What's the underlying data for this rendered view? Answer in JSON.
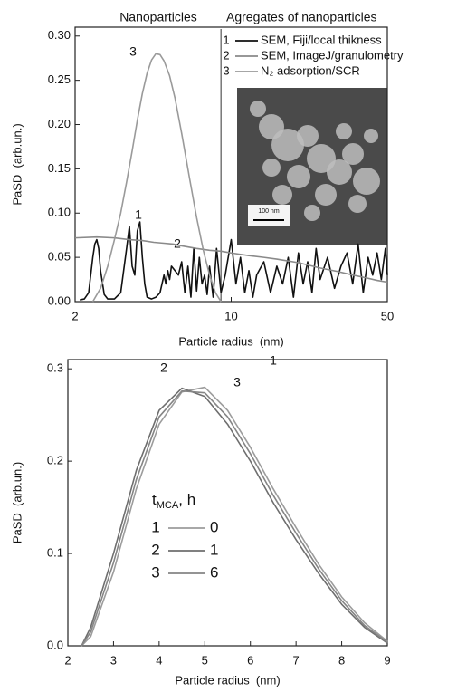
{
  "chart_data": [
    {
      "type": "line",
      "xscale": "log",
      "annotations": [
        "Nanoparticles",
        "Agregates of nanoparticles"
      ],
      "x_label": "Particle radius  (nm)",
      "y_label": "PaSD  (arb.un.)",
      "xlim": [
        2,
        50
      ],
      "xticks": [
        2,
        10,
        50
      ],
      "ylim": [
        0,
        0.31
      ],
      "yticks": [
        {
          "value": 0,
          "label": "0.00"
        },
        0.05,
        {
          "value": 0.1,
          "label": "0.10"
        },
        0.15,
        {
          "value": 0.2,
          "label": "0.20"
        },
        0.25,
        {
          "value": 0.3,
          "label": "0.30"
        }
      ],
      "vline": 9,
      "inset_scale_label": "100 nm",
      "series": [
        {
          "id": "1",
          "name": "SEM, Fiji/local thikness",
          "color": "#111111",
          "x": [
            2.1,
            2.2,
            2.3,
            2.4,
            2.45,
            2.5,
            2.55,
            2.6,
            2.7,
            2.8,
            3.0,
            3.2,
            3.4,
            3.5,
            3.6,
            3.7,
            3.8,
            3.9,
            4.0,
            4.1,
            4.2,
            4.4,
            4.6,
            4.8,
            5.0,
            5.1,
            5.2,
            5.3,
            5.4,
            5.6,
            5.8,
            6.0,
            6.2,
            6.4,
            6.6,
            6.8,
            7.0,
            7.2,
            7.4,
            7.6,
            7.8,
            8.0,
            8.3,
            8.6,
            9.0,
            9.4,
            10.0,
            10.5,
            11,
            11.5,
            12,
            12.5,
            13,
            14,
            15,
            16,
            17,
            18,
            19,
            20,
            21,
            22,
            23,
            24,
            25,
            27,
            29,
            31,
            33,
            35,
            37,
            39,
            41,
            43,
            45,
            47,
            49,
            50
          ],
          "values": [
            0.002,
            0.003,
            0.01,
            0.05,
            0.065,
            0.07,
            0.06,
            0.035,
            0.008,
            0.003,
            0.003,
            0.01,
            0.06,
            0.085,
            0.04,
            0.03,
            0.08,
            0.09,
            0.05,
            0.02,
            0.005,
            0.003,
            0.005,
            0.01,
            0.03,
            0.02,
            0.035,
            0.025,
            0.04,
            0.035,
            0.03,
            0.045,
            0.01,
            0.04,
            0.005,
            0.06,
            0.012,
            0.05,
            0.02,
            0.03,
            0.008,
            0.04,
            0.005,
            0.06,
            0.01,
            0.03,
            0.07,
            0.02,
            0.05,
            0.01,
            0.035,
            0.005,
            0.03,
            0.045,
            0.01,
            0.04,
            0.02,
            0.05,
            0.005,
            0.055,
            0.02,
            0.045,
            0.01,
            0.06,
            0.025,
            0.05,
            0.015,
            0.04,
            0.055,
            0.02,
            0.065,
            0.01,
            0.05,
            0.03,
            0.055,
            0.025,
            0.06,
            0.03
          ]
        },
        {
          "id": "2",
          "name": "SEM, ImageJ/granulometry",
          "color": "#8a8a8a",
          "x": [
            2,
            2.5,
            3,
            3.5,
            4,
            4.5,
            5,
            5.5,
            6,
            7,
            8,
            9,
            10,
            12,
            14,
            16,
            20,
            25,
            30,
            35,
            40,
            45,
            50
          ],
          "values": [
            0.072,
            0.073,
            0.072,
            0.07,
            0.069,
            0.067,
            0.066,
            0.065,
            0.063,
            0.06,
            0.058,
            0.057,
            0.055,
            0.052,
            0.05,
            0.048,
            0.044,
            0.038,
            0.034,
            0.03,
            0.027,
            0.024,
            0.022
          ]
        },
        {
          "id": "3",
          "name": "N₂ adsorption/SCR",
          "color": "#9a9a9a",
          "x": [
            2.4,
            2.6,
            2.8,
            3.0,
            3.2,
            3.4,
            3.6,
            3.8,
            4.0,
            4.2,
            4.4,
            4.6,
            4.8,
            5.0,
            5.3,
            5.6,
            6.0,
            6.5,
            7.0,
            7.5,
            8.0,
            8.5,
            9.0
          ],
          "values": [
            0,
            0.015,
            0.04,
            0.07,
            0.1,
            0.135,
            0.17,
            0.205,
            0.235,
            0.258,
            0.273,
            0.28,
            0.279,
            0.272,
            0.255,
            0.23,
            0.19,
            0.14,
            0.095,
            0.058,
            0.03,
            0.01,
            0
          ]
        }
      ]
    },
    {
      "type": "line",
      "x_label": "Particle radius  (nm)",
      "y_label": "PaSD  (arb.un.)",
      "legend_title": [
        "t",
        "MCA",
        ", h"
      ],
      "xlim": [
        2,
        9
      ],
      "xticks": [
        2,
        3,
        4,
        5,
        6,
        7,
        8,
        9
      ],
      "ylim": [
        0,
        0.31
      ],
      "yticks": [
        {
          "value": 0,
          "label": "0.0"
        },
        0.1,
        0.2,
        0.3
      ],
      "series": [
        {
          "id": "1",
          "name": "0",
          "color": "#9c9c9c",
          "x": [
            2.3,
            2.5,
            3,
            3.5,
            4,
            4.5,
            5,
            5.5,
            6,
            6.5,
            7,
            7.5,
            8,
            8.5,
            9
          ],
          "values": [
            0,
            0.01,
            0.08,
            0.17,
            0.24,
            0.275,
            0.28,
            0.255,
            0.215,
            0.17,
            0.128,
            0.088,
            0.053,
            0.025,
            0.005
          ]
        },
        {
          "id": "2",
          "name": "1",
          "color": "#6e6e6e",
          "x": [
            2.3,
            2.5,
            3,
            3.5,
            4,
            4.5,
            5,
            5.5,
            6,
            6.5,
            7,
            7.5,
            8,
            8.5,
            9
          ],
          "values": [
            0,
            0.02,
            0.1,
            0.19,
            0.255,
            0.279,
            0.27,
            0.24,
            0.2,
            0.155,
            0.115,
            0.078,
            0.045,
            0.02,
            0.003
          ]
        },
        {
          "id": "3",
          "name": "6",
          "color": "#858585",
          "x": [
            2.3,
            2.5,
            3,
            3.5,
            4,
            4.5,
            5,
            5.5,
            6,
            6.5,
            7,
            7.5,
            8,
            8.5,
            9
          ],
          "values": [
            0,
            0.015,
            0.09,
            0.18,
            0.248,
            0.276,
            0.274,
            0.248,
            0.208,
            0.163,
            0.122,
            0.083,
            0.049,
            0.022,
            0.004
          ]
        }
      ]
    }
  ]
}
